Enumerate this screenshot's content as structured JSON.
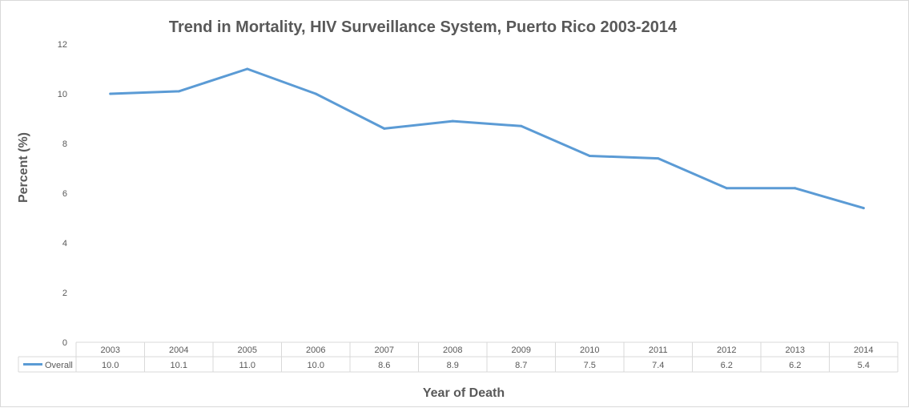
{
  "chart_data": {
    "type": "line",
    "title": "Trend in Mortality, HIV Surveillance System, Puerto Rico 2003-2014",
    "xlabel": "Year of Death",
    "ylabel": "Percent (%)",
    "ylim": [
      0,
      12
    ],
    "yticks": [
      "0",
      "2",
      "4",
      "6",
      "8",
      "10",
      "12"
    ],
    "grid": false,
    "legend": "data-table",
    "categories": [
      "2003",
      "2004",
      "2005",
      "2006",
      "2007",
      "2008",
      "2009",
      "2010",
      "2011",
      "2012",
      "2013",
      "2014"
    ],
    "series": [
      {
        "name": "Overall",
        "color": "#5b9bd5",
        "values": [
          10.0,
          10.1,
          11.0,
          10.0,
          8.6,
          8.9,
          8.7,
          7.5,
          7.4,
          6.2,
          6.2,
          5.4
        ],
        "labels": [
          "10.0",
          "10.1",
          "11.0",
          "10.0",
          "8.6",
          "8.9",
          "8.7",
          "7.5",
          "7.4",
          "6.2",
          "6.2",
          "5.4"
        ]
      }
    ]
  }
}
